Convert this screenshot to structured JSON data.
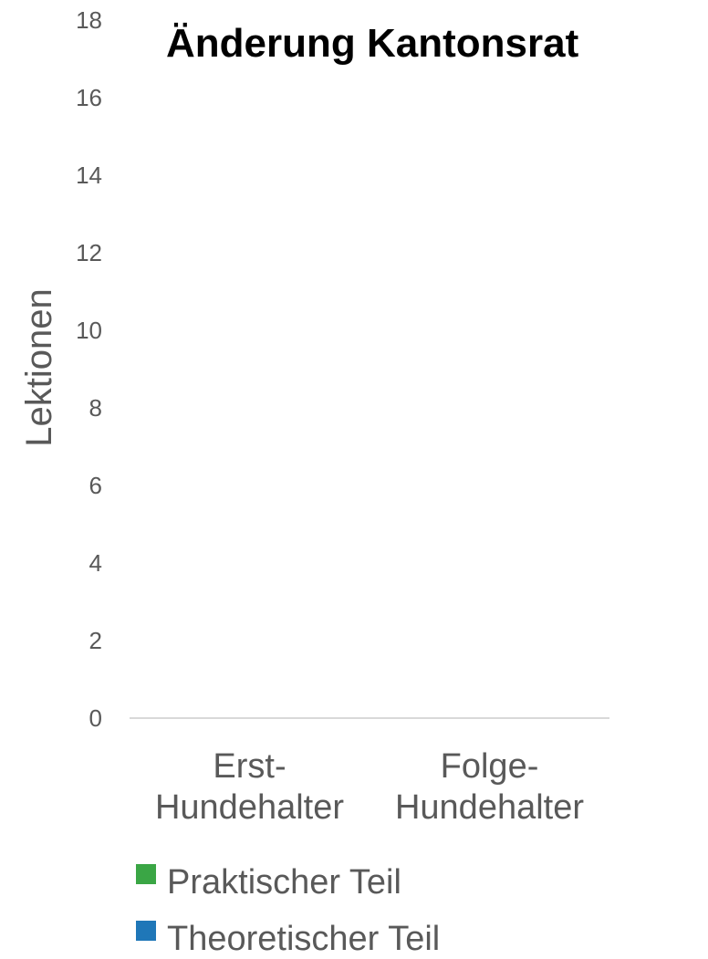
{
  "chart_data": {
    "type": "bar",
    "title": "Änderung Kantonsrat",
    "xlabel": "",
    "ylabel": "Lektionen",
    "ylim": [
      0,
      18
    ],
    "yticks": [
      0,
      2,
      4,
      6,
      8,
      10,
      12,
      14,
      16,
      18
    ],
    "categories": [
      [
        "Erst-",
        "Hundehalter"
      ],
      [
        "Folge-",
        "Hundehalter"
      ]
    ],
    "series": [
      {
        "name": "Praktischer Teil",
        "color": "#3aa645",
        "values": [
          0,
          0
        ]
      },
      {
        "name": "Theoretischer Teil",
        "color": "#1f77b8",
        "values": [
          0,
          0
        ]
      }
    ],
    "legend_position": "bottom-left",
    "grid": false
  }
}
